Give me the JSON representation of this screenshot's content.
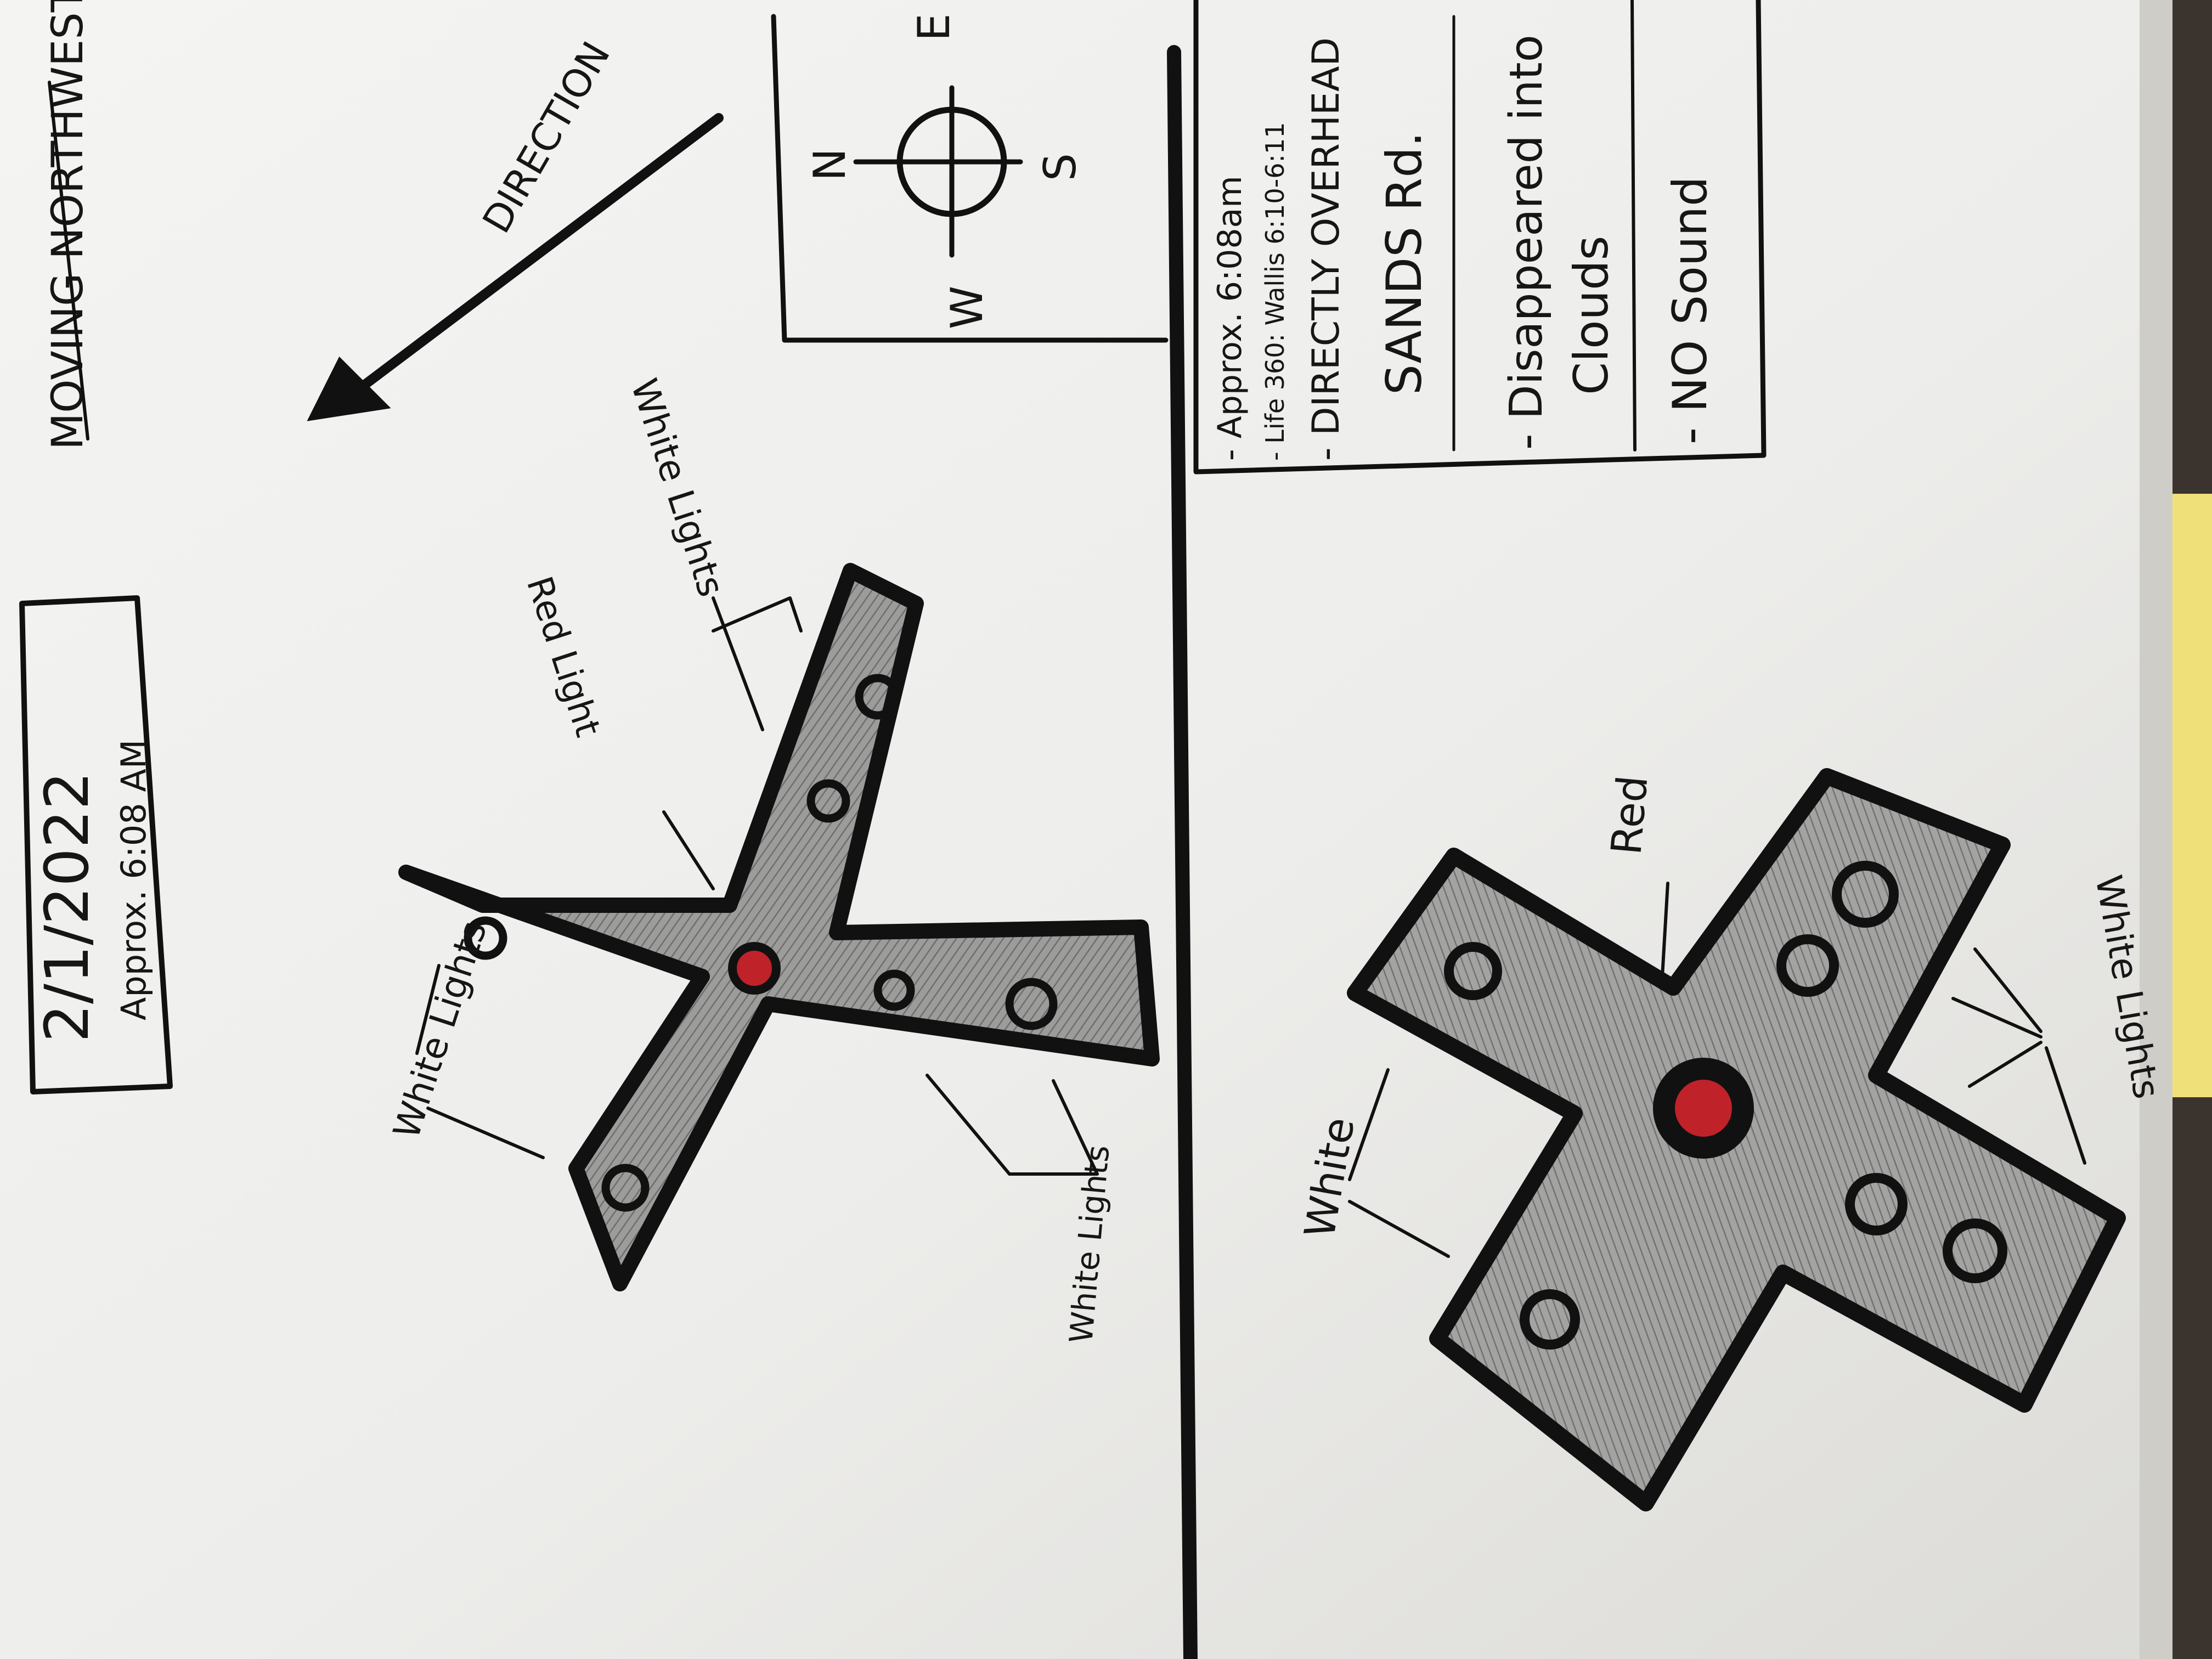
{
  "colors": {
    "paper": "#f1f1ef",
    "paper_shadow": "#d9d8d4",
    "ink": "#111111",
    "shape_fill": "#9a9a98",
    "red_light": "#c0222a",
    "yellow_pad": "#f2e27a"
  },
  "date_box": {
    "date": "2/1/2022",
    "time": "Approx. 6:08 AM"
  },
  "motion_note": {
    "moving": "MOVING NORTHWEST",
    "direction": "DIRECTION"
  },
  "compass": {
    "north": "N",
    "south": "S",
    "east": "E",
    "west": "W"
  },
  "notes": {
    "line1": "- Approx. 6:08am",
    "line2": "- Life 360: Wallis 6:10-6:11",
    "line3": "- DIRECTLY OVERHEAD",
    "line4": "SANDS Rd.",
    "line5": "- Disappeared into",
    "line6": "Clouds",
    "line7": "- NO Sound"
  },
  "left_sketch": {
    "white_lights_a": "White Lights",
    "red_light": "Red Light",
    "white_lights_b": "White Lights",
    "white_lights_c": "White Lights"
  },
  "right_sketch": {
    "white": "White",
    "red": "Red",
    "white_lights": "White Lights"
  },
  "icons": {
    "compass": "compass-icon",
    "arrow": "direction-arrow-icon"
  }
}
